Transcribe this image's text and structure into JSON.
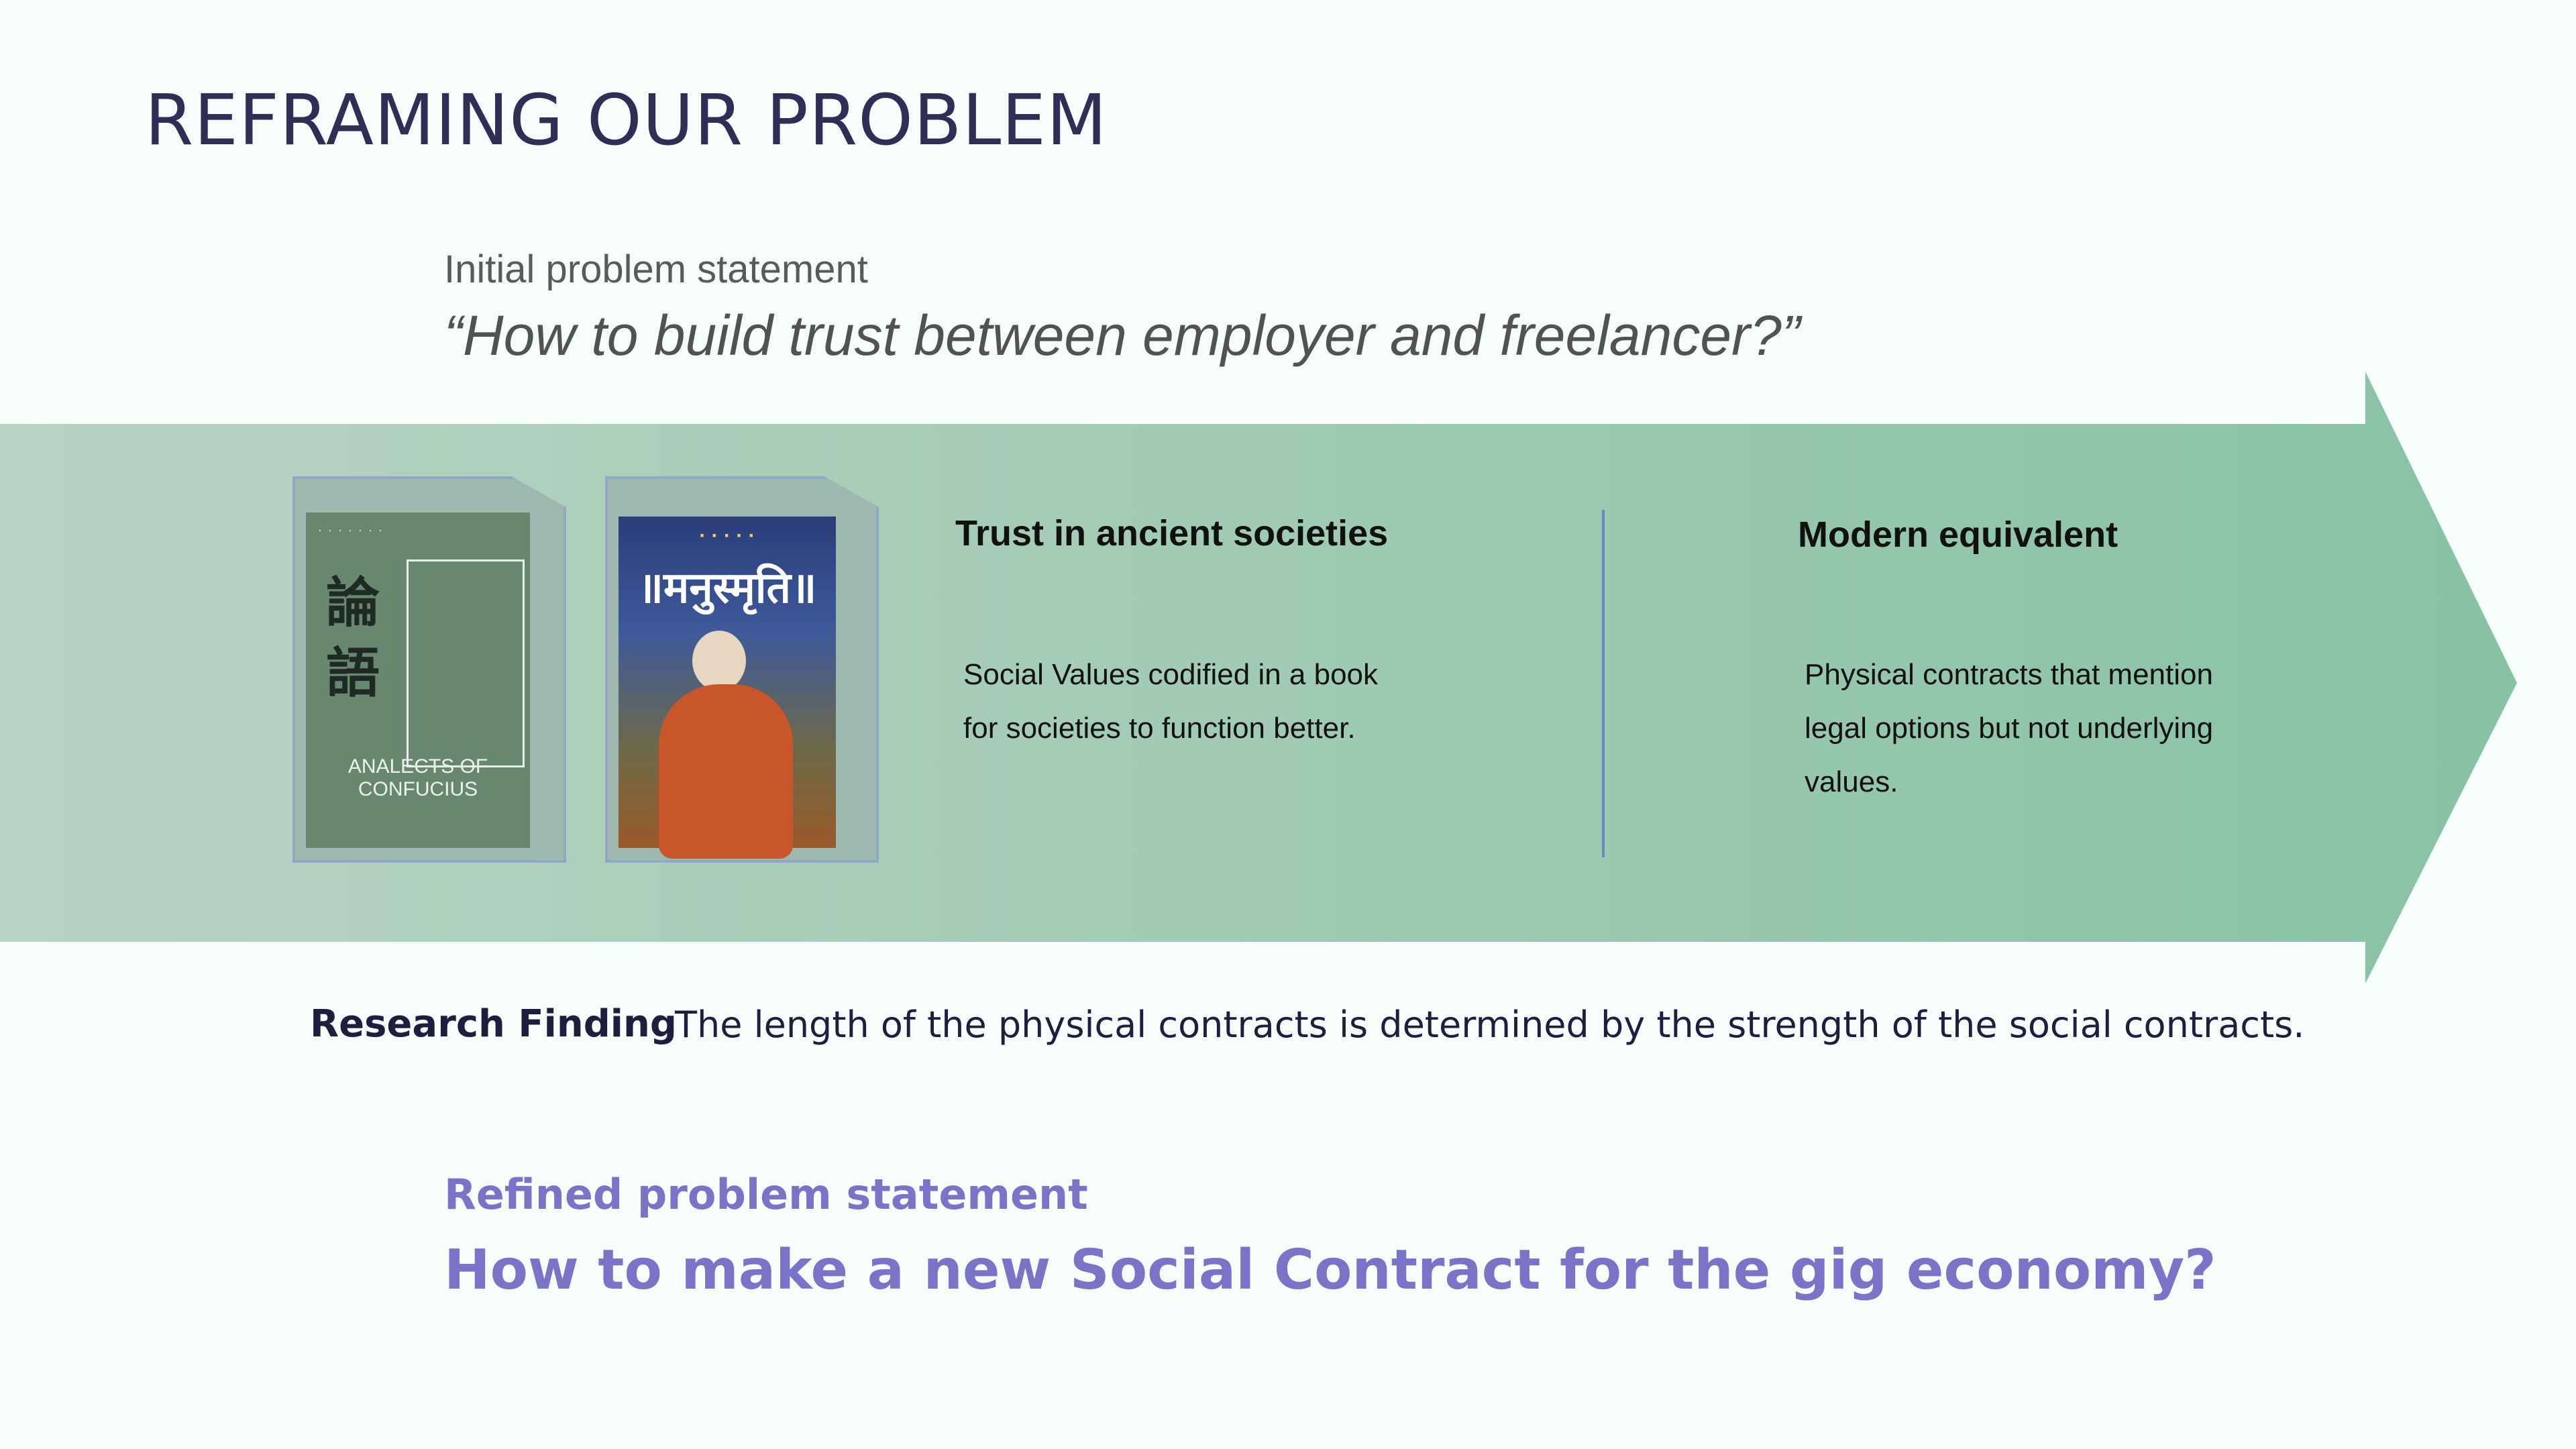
{
  "slide": {
    "title": "REFRAMING OUR PROBLEM"
  },
  "initial": {
    "label": "Initial problem statement",
    "statement": "“How to build trust between employer and freelancer?”"
  },
  "books": {
    "confucius": {
      "glyph_top": "論",
      "glyph_bottom": "語",
      "caption": "ANALECTS OF CONFUCIUS"
    },
    "manusmriti": {
      "title": "॥मनुस्मृति॥"
    }
  },
  "ancient": {
    "heading": "Trust in ancient societies",
    "body": "Social Values codified in a book\nfor societies to function better."
  },
  "modern": {
    "heading": "Modern equivalent",
    "body": "Physical contracts that mention\nlegal options but not underlying\nvalues."
  },
  "finding": {
    "label": "Research Finding",
    "text": "The length of the physical contracts is determined by the strength of the social contracts."
  },
  "refined": {
    "label": "Refined problem statement",
    "statement": "How to make a new Social Contract for the gig economy?"
  },
  "colors": {
    "title": "#2e2f56",
    "accent": "#7a74c8",
    "arrow_start": "#b8d3c4",
    "arrow_end": "#88c2a4",
    "divider": "#6f86b8"
  }
}
